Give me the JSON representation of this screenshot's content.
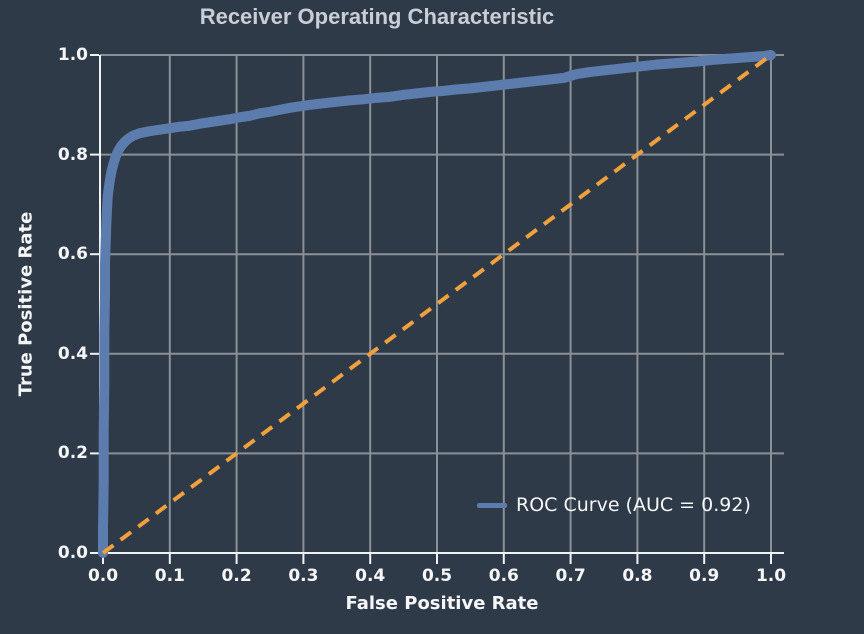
{
  "colors": {
    "background": "#2f3a49",
    "grid": "#8b8f96",
    "spine": "#f0f2f4",
    "tick_text": "#f5f6f8",
    "title_text": "#c9ced6",
    "curve": "#5b7cad",
    "diagonal": "#f0a03c",
    "legend_text": "#f5f6f8"
  },
  "chart_data": {
    "type": "line",
    "title": "Receiver Operating Characteristic",
    "xlabel": "False Positive Rate",
    "ylabel": "True Positive Rate",
    "xlim": [
      0.0,
      1.0
    ],
    "ylim": [
      0.0,
      1.0
    ],
    "x_tick_labels": [
      "0.0",
      "0.1",
      "0.2",
      "0.3",
      "0.4",
      "0.5",
      "0.6",
      "0.7",
      "0.8",
      "0.9",
      "1.0"
    ],
    "y_tick_labels": [
      "0.0",
      "0.2",
      "0.4",
      "0.6",
      "0.8",
      "1.0"
    ],
    "grid": true,
    "auc": 0.92,
    "legend": {
      "position": "lower-right",
      "label": "ROC Curve (AUC = 0.92)"
    },
    "series": [
      {
        "name": "roc-curve",
        "style": "solid",
        "color": "#5b7cad",
        "points": [
          [
            0.0,
            0.0
          ],
          [
            0.0,
            0.05
          ],
          [
            0.001,
            0.14
          ],
          [
            0.001,
            0.24
          ],
          [
            0.002,
            0.34
          ],
          [
            0.002,
            0.44
          ],
          [
            0.003,
            0.52
          ],
          [
            0.003,
            0.58
          ],
          [
            0.004,
            0.62
          ],
          [
            0.005,
            0.66
          ],
          [
            0.006,
            0.69
          ],
          [
            0.007,
            0.715
          ],
          [
            0.009,
            0.737
          ],
          [
            0.011,
            0.754
          ],
          [
            0.013,
            0.768
          ],
          [
            0.016,
            0.783
          ],
          [
            0.019,
            0.796
          ],
          [
            0.023,
            0.808
          ],
          [
            0.027,
            0.817
          ],
          [
            0.032,
            0.825
          ],
          [
            0.038,
            0.832
          ],
          [
            0.045,
            0.838
          ],
          [
            0.055,
            0.843
          ],
          [
            0.07,
            0.847
          ],
          [
            0.085,
            0.85
          ],
          [
            0.1,
            0.853
          ],
          [
            0.115,
            0.856
          ],
          [
            0.13,
            0.858
          ],
          [
            0.145,
            0.862
          ],
          [
            0.16,
            0.865
          ],
          [
            0.175,
            0.868
          ],
          [
            0.19,
            0.871
          ],
          [
            0.205,
            0.875
          ],
          [
            0.22,
            0.878
          ],
          [
            0.235,
            0.883
          ],
          [
            0.25,
            0.886
          ],
          [
            0.265,
            0.89
          ],
          [
            0.28,
            0.894
          ],
          [
            0.295,
            0.897
          ],
          [
            0.31,
            0.9
          ],
          [
            0.33,
            0.903
          ],
          [
            0.35,
            0.906
          ],
          [
            0.37,
            0.909
          ],
          [
            0.39,
            0.911
          ],
          [
            0.41,
            0.914
          ],
          [
            0.43,
            0.916
          ],
          [
            0.45,
            0.92
          ],
          [
            0.47,
            0.923
          ],
          [
            0.49,
            0.926
          ],
          [
            0.51,
            0.928
          ],
          [
            0.53,
            0.931
          ],
          [
            0.55,
            0.933
          ],
          [
            0.57,
            0.936
          ],
          [
            0.59,
            0.939
          ],
          [
            0.61,
            0.942
          ],
          [
            0.63,
            0.945
          ],
          [
            0.65,
            0.948
          ],
          [
            0.67,
            0.951
          ],
          [
            0.69,
            0.954
          ],
          [
            0.7,
            0.958
          ],
          [
            0.71,
            0.962
          ],
          [
            0.73,
            0.966
          ],
          [
            0.75,
            0.969
          ],
          [
            0.77,
            0.972
          ],
          [
            0.79,
            0.975
          ],
          [
            0.81,
            0.978
          ],
          [
            0.83,
            0.981
          ],
          [
            0.85,
            0.983
          ],
          [
            0.87,
            0.985
          ],
          [
            0.89,
            0.987
          ],
          [
            0.91,
            0.99
          ],
          [
            0.93,
            0.992
          ],
          [
            0.95,
            0.994
          ],
          [
            0.97,
            0.996
          ],
          [
            0.99,
            0.998
          ],
          [
            1.0,
            1.0
          ]
        ]
      },
      {
        "name": "chance-line",
        "style": "dashed",
        "color": "#f0a03c",
        "points": [
          [
            0.0,
            0.0
          ],
          [
            1.0,
            1.0
          ]
        ]
      }
    ]
  }
}
